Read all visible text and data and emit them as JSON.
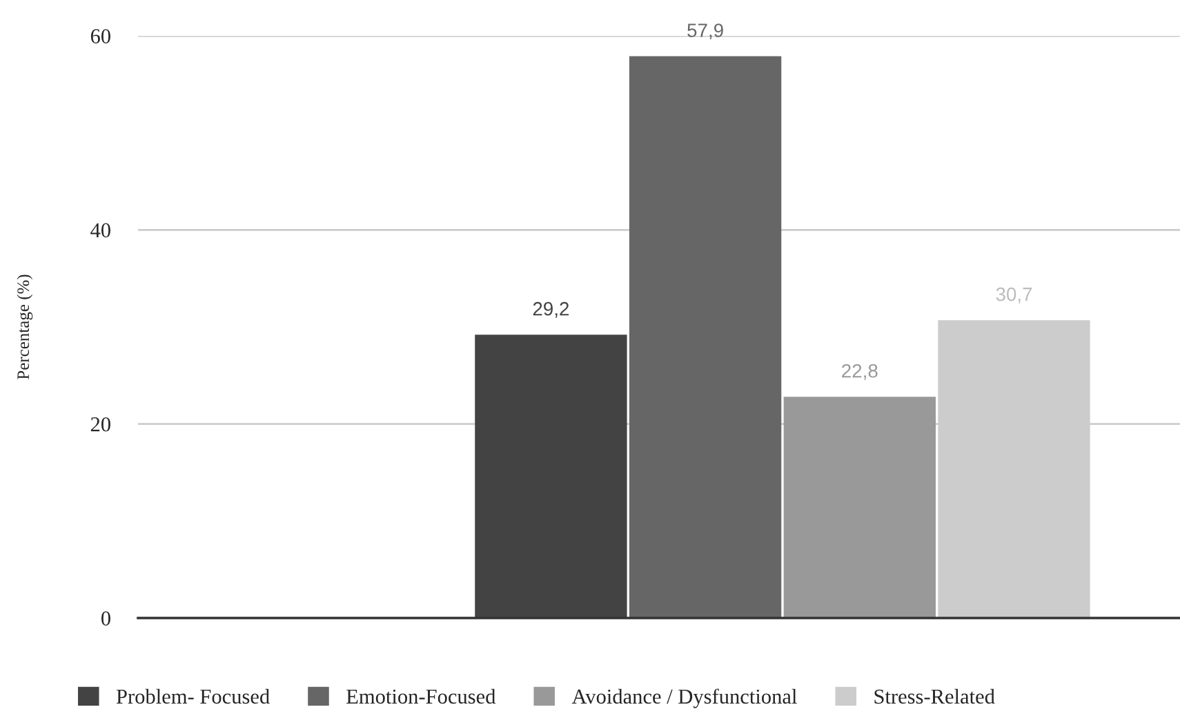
{
  "chart_data": {
    "type": "bar",
    "ylabel": "Percentage (%)",
    "categories": [
      null
    ],
    "series": [
      {
        "name": "Problem- Focused",
        "color": "#434343",
        "values": [
          29.2
        ],
        "value_labels": [
          "29,2"
        ]
      },
      {
        "name": "Emotion-Focused",
        "color": "#666666",
        "values": [
          57.9
        ],
        "value_labels": [
          "57,9"
        ]
      },
      {
        "name": "Avoidance / Dysfunctional",
        "color": "#999999",
        "values": [
          22.8
        ],
        "value_labels": [
          "22,8"
        ]
      },
      {
        "name": "Stress-Related",
        "color": "#cccccc",
        "values": [
          30.7
        ],
        "value_labels": [
          "30,7"
        ]
      }
    ],
    "ylim": [
      0,
      60
    ],
    "yticks": [
      0,
      20,
      40,
      60
    ],
    "grid": "y",
    "legend": "bottom"
  }
}
